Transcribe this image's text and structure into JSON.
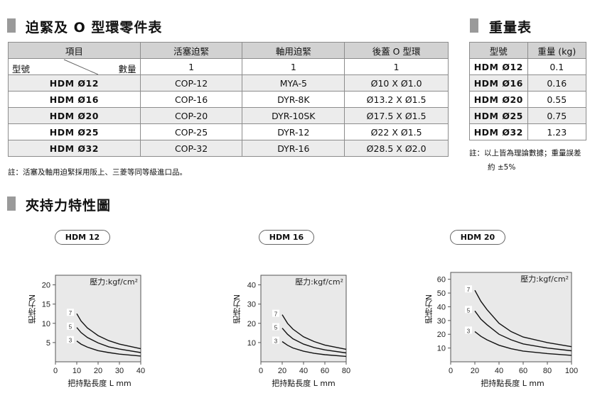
{
  "parts_section": {
    "title": "迫緊及 O 型環零件表",
    "headers": [
      "項目",
      "活塞迫緊",
      "軸用迫緊",
      "後蓋 O 型環"
    ],
    "row_label_left": "型號",
    "row_label_right": "數量",
    "quantities": [
      "1",
      "1",
      "1"
    ],
    "rows": [
      {
        "model": "HDM Ø12",
        "piston": "COP-12",
        "shaft": "MYA-5",
        "oring": "Ø10 X Ø1.0"
      },
      {
        "model": "HDM Ø16",
        "piston": "COP-16",
        "shaft": "DYR-8K",
        "oring": "Ø13.2 X Ø1.5"
      },
      {
        "model": "HDM Ø20",
        "piston": "COP-20",
        "shaft": "DYR-10SK",
        "oring": "Ø17.5 X Ø1.5"
      },
      {
        "model": "HDM Ø25",
        "piston": "COP-25",
        "shaft": "DYR-12",
        "oring": "Ø22 X Ø1.5"
      },
      {
        "model": "HDM Ø32",
        "piston": "COP-32",
        "shaft": "DYR-16",
        "oring": "Ø28.5 X Ø2.0"
      }
    ],
    "note": "註：活塞及軸用迫緊採用阪上、三菱等同等級進口品。"
  },
  "weight_section": {
    "title": "重量表",
    "headers": [
      "型號",
      "重量 (kg)"
    ],
    "rows": [
      {
        "model": "HDM Ø12",
        "weight": "0.1"
      },
      {
        "model": "HDM Ø16",
        "weight": "0.16"
      },
      {
        "model": "HDM Ø20",
        "weight": "0.55"
      },
      {
        "model": "HDM Ø25",
        "weight": "0.75"
      },
      {
        "model": "HDM Ø32",
        "weight": "1.23"
      }
    ],
    "note_line1": "註：以上皆為理論數據；重量誤差",
    "note_line2": "約 ±5%"
  },
  "chart_section": {
    "title": "夾持力特性圖"
  },
  "chart_data": [
    {
      "type": "line",
      "title": "HDM 12",
      "annotation": "壓力:kgf/cm²",
      "xlabel": "把持點長度 L mm",
      "ylabel": "把持力N",
      "xlim": [
        0,
        40
      ],
      "ylim": [
        0,
        22.5
      ],
      "xticks": [
        0,
        10,
        20,
        30,
        40
      ],
      "yticks": [
        5,
        10,
        15,
        20
      ],
      "series": [
        {
          "name": "7",
          "x": [
            10,
            12,
            15,
            20,
            25,
            30,
            40
          ],
          "y": [
            12.5,
            10.6,
            8.8,
            6.8,
            5.5,
            4.6,
            3.4
          ]
        },
        {
          "name": "5",
          "x": [
            10,
            12,
            15,
            20,
            25,
            30,
            40
          ],
          "y": [
            8.9,
            7.6,
            6.3,
            4.9,
            3.9,
            3.3,
            2.4
          ]
        },
        {
          "name": "3",
          "x": [
            10,
            12,
            15,
            20,
            25,
            30,
            40
          ],
          "y": [
            5.4,
            4.6,
            3.8,
            2.9,
            2.4,
            2.0,
            1.5
          ]
        }
      ]
    },
    {
      "type": "line",
      "title": "HDM 16",
      "annotation": "壓力:kgf/cm²",
      "xlabel": "把持點長度 L mm",
      "ylabel": "把持力N",
      "xlim": [
        0,
        80
      ],
      "ylim": [
        0,
        45
      ],
      "xticks": [
        0,
        20,
        40,
        60,
        80
      ],
      "yticks": [
        10,
        20,
        30,
        40
      ],
      "series": [
        {
          "name": "7",
          "x": [
            20,
            25,
            30,
            40,
            50,
            60,
            80
          ],
          "y": [
            24.5,
            20,
            17,
            13,
            10.5,
            8.7,
            6.5
          ]
        },
        {
          "name": "5",
          "x": [
            20,
            25,
            30,
            40,
            50,
            60,
            80
          ],
          "y": [
            17.5,
            14.3,
            12,
            9.2,
            7.4,
            6.2,
            4.6
          ]
        },
        {
          "name": "3",
          "x": [
            20,
            25,
            30,
            40,
            50,
            60,
            80
          ],
          "y": [
            10.5,
            8.6,
            7.2,
            5.5,
            4.4,
            3.7,
            2.8
          ]
        }
      ]
    },
    {
      "type": "line",
      "title": "HDM 20",
      "annotation": "壓力:kgf/cm²",
      "xlabel": "把持點長度 L mm",
      "ylabel": "把持力N",
      "xlim": [
        0,
        100
      ],
      "ylim": [
        0,
        65
      ],
      "xticks": [
        0,
        20,
        40,
        60,
        80,
        100
      ],
      "yticks": [
        10,
        20,
        30,
        40,
        50,
        60
      ],
      "series": [
        {
          "name": "7",
          "x": [
            20,
            25,
            30,
            40,
            50,
            60,
            80,
            100
          ],
          "y": [
            52,
            44,
            38,
            28,
            22,
            18,
            14,
            11
          ]
        },
        {
          "name": "5",
          "x": [
            20,
            25,
            30,
            40,
            50,
            60,
            80,
            100
          ],
          "y": [
            37,
            31,
            27,
            20,
            16,
            13,
            10,
            8
          ]
        },
        {
          "name": "3",
          "x": [
            20,
            25,
            30,
            40,
            50,
            60,
            80,
            100
          ],
          "y": [
            22,
            18.5,
            16,
            12,
            9.5,
            7.8,
            6,
            4.7
          ]
        }
      ]
    }
  ]
}
